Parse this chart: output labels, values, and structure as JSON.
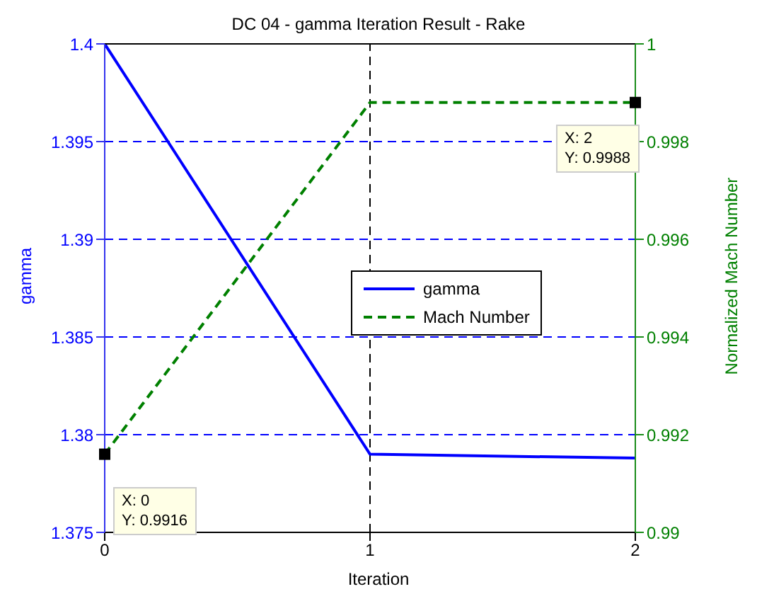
{
  "chart_data": {
    "type": "line",
    "title": "DC 04 - gamma Iteration Result - Rake",
    "xlabel": "Iteration",
    "ylabel": "gamma",
    "y2label": "Normalized Mach Number",
    "x": [
      0,
      1,
      2
    ],
    "xlim": [
      0,
      2
    ],
    "xticks": [
      0,
      1,
      2
    ],
    "ylim": [
      1.375,
      1.4
    ],
    "yticks": [
      1.375,
      1.38,
      1.385,
      1.39,
      1.395,
      1.4
    ],
    "y2lim": [
      0.99,
      1
    ],
    "y2ticks": [
      0.99,
      0.992,
      0.994,
      0.996,
      0.998,
      1
    ],
    "series": [
      {
        "name": "gamma",
        "color": "#0000ff",
        "values": [
          1.4,
          1.379,
          1.3788
        ],
        "line_style": "solid"
      },
      {
        "name": "Mach Number",
        "color": "#008000",
        "values": [
          0.9916,
          0.9988,
          0.9988
        ],
        "axis": "y2",
        "line_style": "dashed"
      }
    ],
    "annotations": [
      "X: 0\nY: 0.9916",
      "X: 2\nY: 0.9988"
    ],
    "ref_lines": [
      {
        "axis": "x",
        "value": 1,
        "color": "#000000",
        "line_style": "dashed"
      }
    ],
    "grid": "y",
    "legend": "center"
  }
}
